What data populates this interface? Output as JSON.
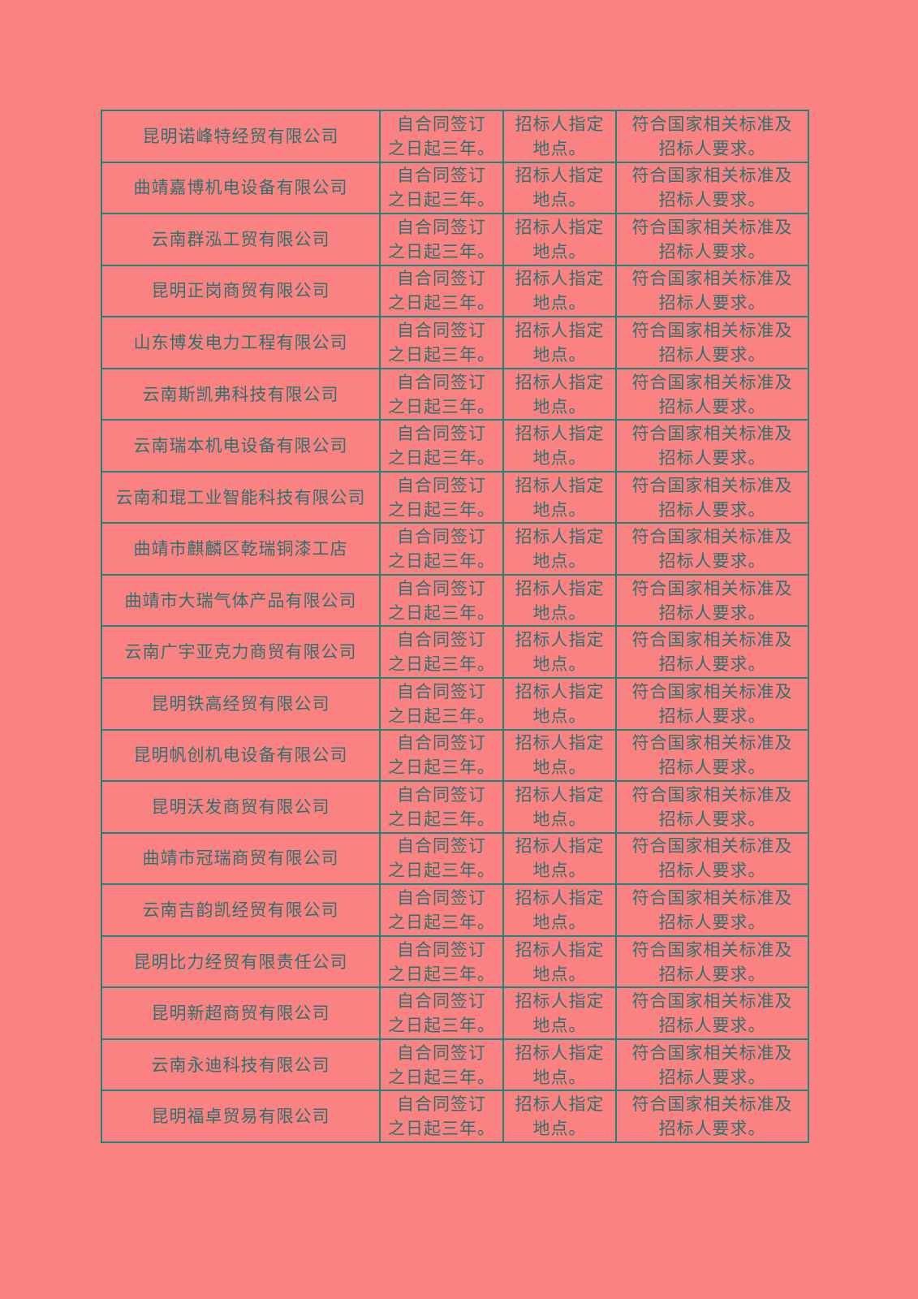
{
  "document": {
    "background_color": "#fb8282",
    "border_color": "#1c867a",
    "text_color": "#2f716c"
  },
  "table": {
    "row_count": 20,
    "companies": [
      "昆明诺峰特经贸有限公司",
      "曲靖嘉博机电设备有限公司",
      "云南群泓工贸有限公司",
      "昆明正岗商贸有限公司",
      "山东博发电力工程有限公司",
      "云南斯凯弗科技有限公司",
      "云南瑞本机电设备有限公司",
      "云南和琨工业智能科技有限公司",
      "曲靖市麒麟区乾瑞铜漆工店",
      "曲靖市大瑞气体产品有限公司",
      "云南广宇亚克力商贸有限公司",
      "昆明铁高经贸有限公司",
      "昆明帆创机电设备有限公司",
      "昆明沃发商贸有限公司",
      "曲靖市冠瑞商贸有限公司",
      "云南吉韵凯经贸有限公司",
      "昆明比力经贸有限责任公司",
      "昆明新超商贸有限公司",
      "云南永迪科技有限公司",
      "昆明福卓贸易有限公司"
    ],
    "duration_text": "自合同签订之日起三年。",
    "duration_lines": [
      "自合同签订",
      "之日起三年。"
    ],
    "location_text": "招标人指定地点。",
    "location_lines": [
      "招标人指定",
      "地点。"
    ],
    "quality_text": "符合国家相关标准及招标人要求。",
    "quality_lines": [
      "符合国家相关标准及",
      "招标人要求。"
    ]
  }
}
